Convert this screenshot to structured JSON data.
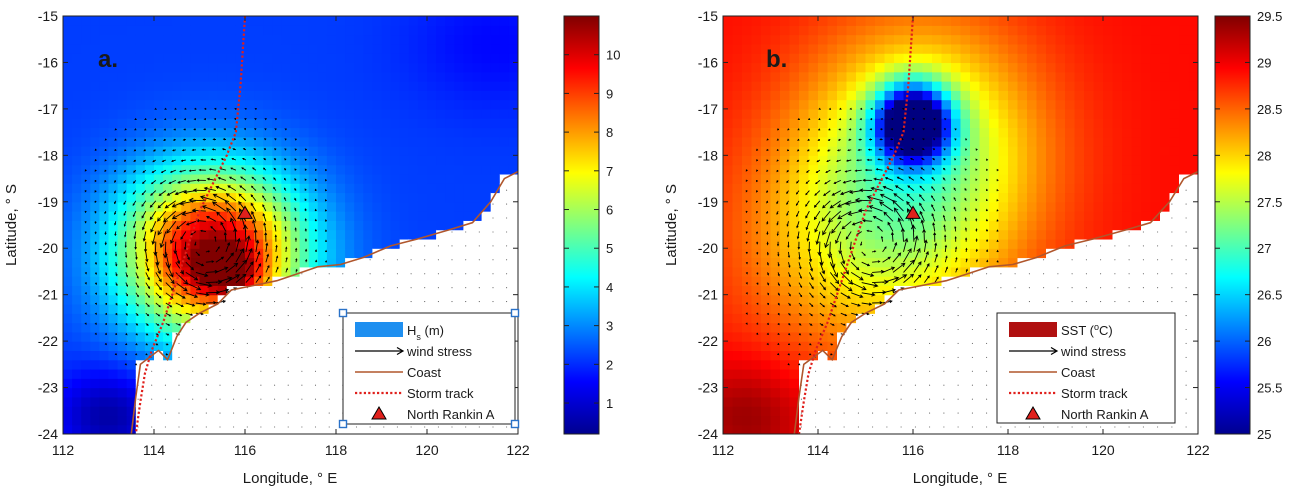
{
  "chart_data": [
    {
      "type": "heatmap",
      "panel_label": "a.",
      "xlabel": "Longitude, ° E",
      "ylabel": "Latitude, ° S",
      "xlim": [
        112,
        122
      ],
      "ylim": [
        -24,
        -15
      ],
      "xticks": [
        "112",
        "114",
        "116",
        "118",
        "120",
        "122"
      ],
      "yticks": [
        "-15",
        "-16",
        "-17",
        "-18",
        "-19",
        "-20",
        "-21",
        "-22",
        "-23",
        "-24"
      ],
      "colorbar": {
        "min": 0.2,
        "max": 11,
        "ticks": [
          "1",
          "2",
          "3",
          "4",
          "5",
          "6",
          "7",
          "8",
          "9",
          "10"
        ],
        "colormap": "jet"
      },
      "field": {
        "background": 2.2,
        "blobs": [
          {
            "x": 115.3,
            "y": -20.1,
            "peak": 8.8,
            "sx": 1.9,
            "sy": 1.7
          },
          {
            "x": 115.6,
            "y": -20.5,
            "peak": 2.8,
            "sx": 0.6,
            "sy": 0.45
          },
          {
            "x": 113.0,
            "y": -23.6,
            "peak": -1.6,
            "sx": 1.2,
            "sy": 1.0
          },
          {
            "x": 121.5,
            "y": -15.6,
            "peak": -0.6,
            "sx": 2.0,
            "sy": 1.5
          }
        ]
      },
      "legend": {
        "position": "bottom-right",
        "entries": [
          {
            "label": "H",
            "sub": "s",
            "suffix": " (m)",
            "style": "patch",
            "color": "#1e8ff0"
          },
          {
            "label": "wind stress",
            "style": "arrow",
            "color": "#000000"
          },
          {
            "label": "Coast",
            "style": "line",
            "color": "#b0562c"
          },
          {
            "label": "Storm track",
            "style": "dotted",
            "color": "#e0201c"
          },
          {
            "label": "North Rankin A",
            "style": "triangle",
            "color": "#e0201c"
          }
        ]
      },
      "storm_track": [
        [
          116.0,
          -15.0
        ],
        [
          115.9,
          -16.5
        ],
        [
          115.8,
          -17.5
        ],
        [
          115.6,
          -18.0
        ],
        [
          115.3,
          -18.6
        ],
        [
          115.0,
          -19.2
        ],
        [
          114.8,
          -19.8
        ],
        [
          114.6,
          -20.4
        ],
        [
          114.4,
          -21.0
        ],
        [
          114.2,
          -21.6
        ],
        [
          113.95,
          -22.2
        ],
        [
          113.8,
          -22.7
        ],
        [
          113.7,
          -23.3
        ],
        [
          113.6,
          -24.0
        ]
      ],
      "storm_center": [
        115.1,
        -19.9
      ],
      "station": {
        "name": "North Rankin A",
        "x": 116.0,
        "y": -19.25
      }
    },
    {
      "type": "heatmap",
      "panel_label": "b.",
      "xlabel": "Longitude, ° E",
      "ylabel": "Latitude, ° S",
      "xlim": [
        112,
        122
      ],
      "ylim": [
        -24,
        -15
      ],
      "xticks": [
        "112",
        "114",
        "116",
        "118",
        "120",
        "122"
      ],
      "yticks": [
        "-15",
        "-16",
        "-17",
        "-18",
        "-19",
        "-20",
        "-21",
        "-22",
        "-23",
        "-24"
      ],
      "colorbar": {
        "min": 25,
        "max": 29.5,
        "ticks": [
          "25",
          "25.5",
          "26",
          "26.5",
          "27",
          "27.5",
          "28",
          "28.5",
          "29",
          "29.5"
        ],
        "colormap": "jet"
      },
      "field": {
        "background": 28.9,
        "blobs": [
          {
            "x": 116.0,
            "y": -17.3,
            "peak": -3.9,
            "sx": 0.75,
            "sy": 0.8
          },
          {
            "x": 116.2,
            "y": -17.8,
            "peak": -1.5,
            "sx": 2.4,
            "sy": 2.6
          },
          {
            "x": 115.0,
            "y": -19.9,
            "peak": -0.9,
            "sx": 2.6,
            "sy": 2.4
          },
          {
            "x": 112.5,
            "y": -23.6,
            "peak": 0.5,
            "sx": 1.3,
            "sy": 1.2
          }
        ]
      },
      "legend": {
        "position": "bottom-right",
        "entries": [
          {
            "label": "SST (",
            "sup": "o",
            "suffix": "C)",
            "style": "patch",
            "color": "#b01010"
          },
          {
            "label": "wind stress",
            "style": "arrow",
            "color": "#000000"
          },
          {
            "label": "Coast",
            "style": "line",
            "color": "#b0562c"
          },
          {
            "label": "Storm track",
            "style": "dotted",
            "color": "#e0201c"
          },
          {
            "label": "North Rankin A",
            "style": "triangle",
            "color": "#e0201c"
          }
        ]
      },
      "storm_track": [
        [
          116.0,
          -15.0
        ],
        [
          115.9,
          -16.5
        ],
        [
          115.8,
          -17.5
        ],
        [
          115.6,
          -18.0
        ],
        [
          115.3,
          -18.6
        ],
        [
          115.0,
          -19.2
        ],
        [
          114.8,
          -19.8
        ],
        [
          114.6,
          -20.4
        ],
        [
          114.4,
          -21.0
        ],
        [
          114.2,
          -21.6
        ],
        [
          113.95,
          -22.2
        ],
        [
          113.8,
          -22.7
        ],
        [
          113.7,
          -23.3
        ],
        [
          113.6,
          -24.0
        ]
      ],
      "storm_center": [
        115.1,
        -19.9
      ],
      "station": {
        "name": "North Rankin A",
        "x": 116.0,
        "y": -19.25
      }
    }
  ],
  "coastline": [
    [
      113.5,
      -24.0
    ],
    [
      113.6,
      -23.2
    ],
    [
      113.7,
      -22.5
    ],
    [
      114.1,
      -22.2
    ],
    [
      114.3,
      -22.4
    ],
    [
      114.5,
      -21.9
    ],
    [
      114.7,
      -21.6
    ],
    [
      115.0,
      -21.4
    ],
    [
      115.4,
      -21.2
    ],
    [
      115.7,
      -20.9
    ],
    [
      116.2,
      -20.8
    ],
    [
      116.7,
      -20.7
    ],
    [
      117.0,
      -20.6
    ],
    [
      117.6,
      -20.4
    ],
    [
      118.1,
      -20.35
    ],
    [
      118.6,
      -20.2
    ],
    [
      119.2,
      -19.95
    ],
    [
      119.8,
      -19.8
    ],
    [
      120.5,
      -19.6
    ],
    [
      121.0,
      -19.45
    ],
    [
      121.4,
      -19.0
    ],
    [
      121.7,
      -18.5
    ],
    [
      122.0,
      -18.35
    ]
  ]
}
